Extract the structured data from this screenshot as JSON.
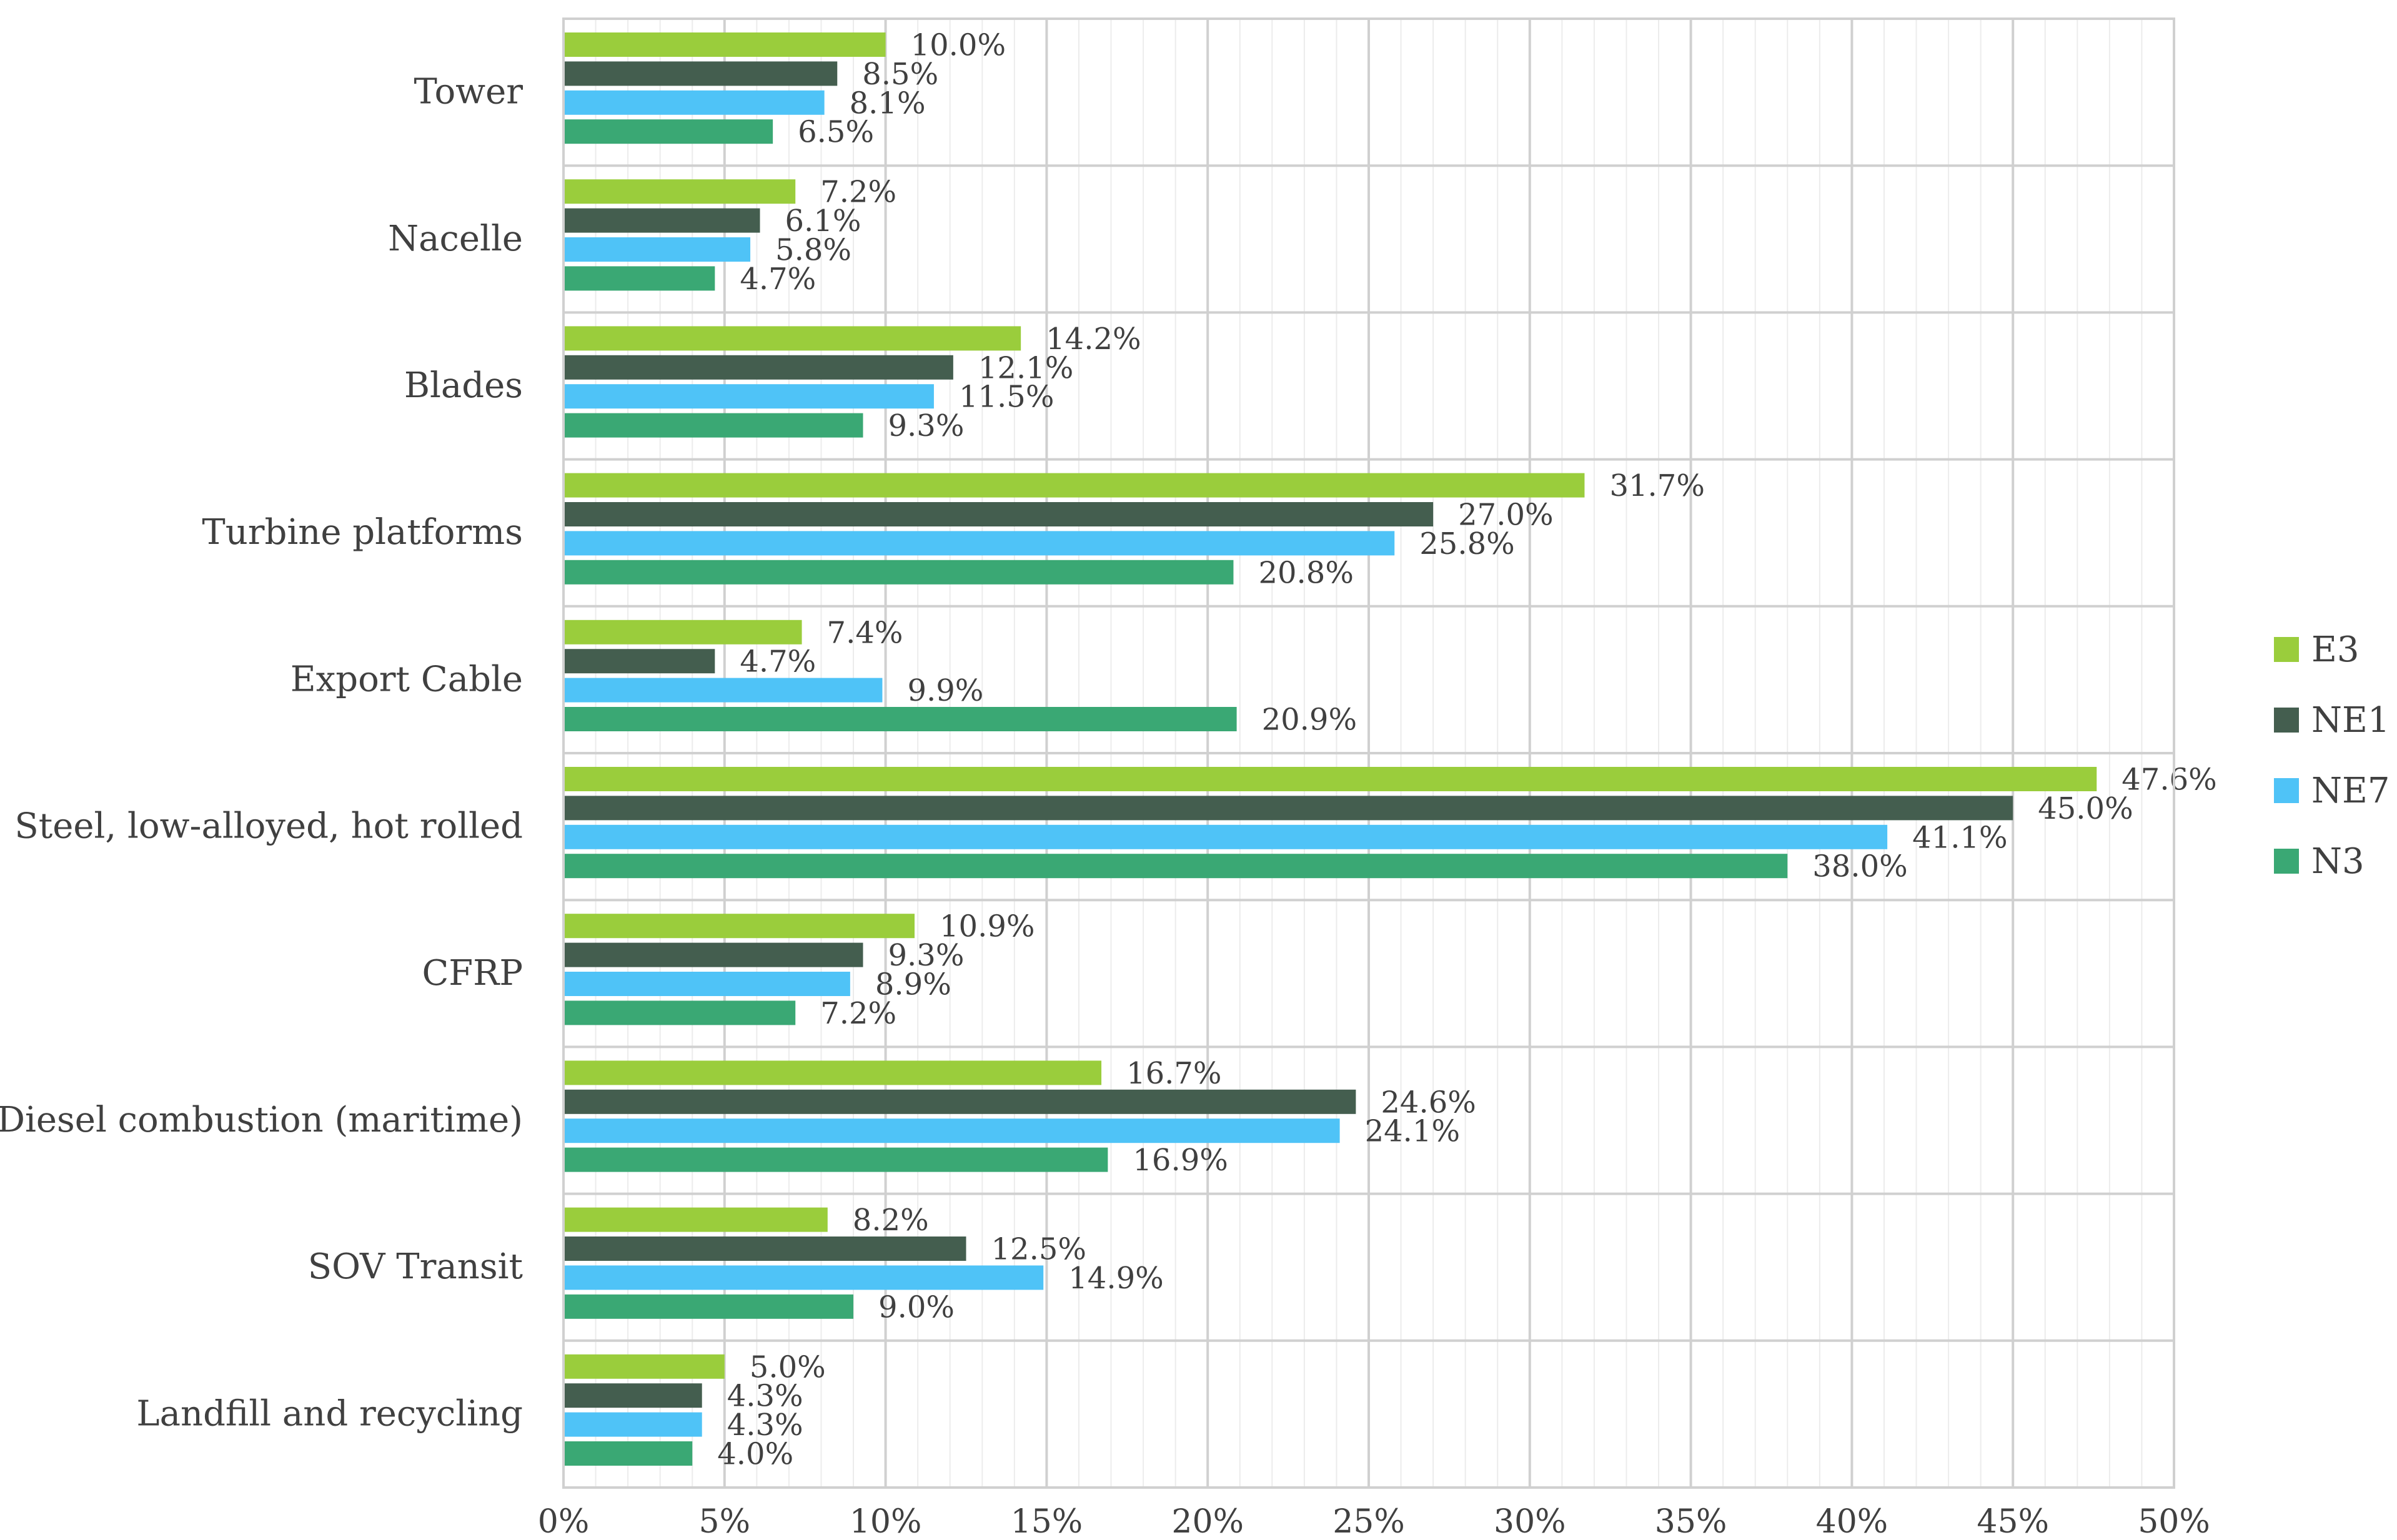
{
  "chart_data": {
    "type": "bar",
    "orientation": "horizontal",
    "title": "",
    "xlabel": "",
    "ylabel": "",
    "xlim": [
      0,
      50
    ],
    "x_ticks": [
      "0%",
      "5%",
      "10%",
      "15%",
      "20%",
      "25%",
      "30%",
      "35%",
      "40%",
      "45%",
      "50%"
    ],
    "grid": true,
    "legend_position": "right",
    "categories": [
      "Tower",
      "Nacelle",
      "Blades",
      "Turbine platforms",
      "Export Cable",
      "Steel, low-alloyed, hot rolled",
      "CFRP",
      "Diesel combustion (maritime)",
      "SOV Transit",
      "Landfill and recycling"
    ],
    "series": [
      {
        "name": "E3",
        "color": "#9ACD3C",
        "values": [
          10.0,
          7.2,
          14.2,
          31.7,
          7.4,
          47.6,
          10.9,
          16.7,
          8.2,
          5.0
        ],
        "labels": [
          "10.0%",
          "7.2%",
          "14.2%",
          "31.7%",
          "7.4%",
          "47.6%",
          "10.9%",
          "16.7%",
          "8.2%",
          "5.0%"
        ]
      },
      {
        "name": "NE1",
        "color": "#445E4F",
        "values": [
          8.5,
          6.1,
          12.1,
          27.0,
          4.7,
          45.0,
          9.3,
          24.6,
          12.5,
          4.3
        ],
        "labels": [
          "8.5%",
          "6.1%",
          "12.1%",
          "27.0%",
          "4.7%",
          "45.0%",
          "9.3%",
          "24.6%",
          "12.5%",
          "4.3%"
        ]
      },
      {
        "name": "NE7",
        "color": "#4FC3F7",
        "values": [
          8.1,
          5.8,
          11.5,
          25.8,
          9.9,
          41.1,
          8.9,
          24.1,
          14.9,
          4.3
        ],
        "labels": [
          "8.1%",
          "5.8%",
          "11.5%",
          "25.8%",
          "9.9%",
          "41.1%",
          "8.9%",
          "24.1%",
          "14.9%",
          "4.3%"
        ]
      },
      {
        "name": "N3",
        "color": "#3AA874",
        "values": [
          6.5,
          4.7,
          9.3,
          20.8,
          20.9,
          38.0,
          7.2,
          16.9,
          9.0,
          4.0
        ],
        "labels": [
          "6.5%",
          "4.7%",
          "9.3%",
          "20.8%",
          "20.9%",
          "38.0%",
          "7.2%",
          "16.9%",
          "9.0%",
          "4.0%"
        ]
      }
    ]
  }
}
